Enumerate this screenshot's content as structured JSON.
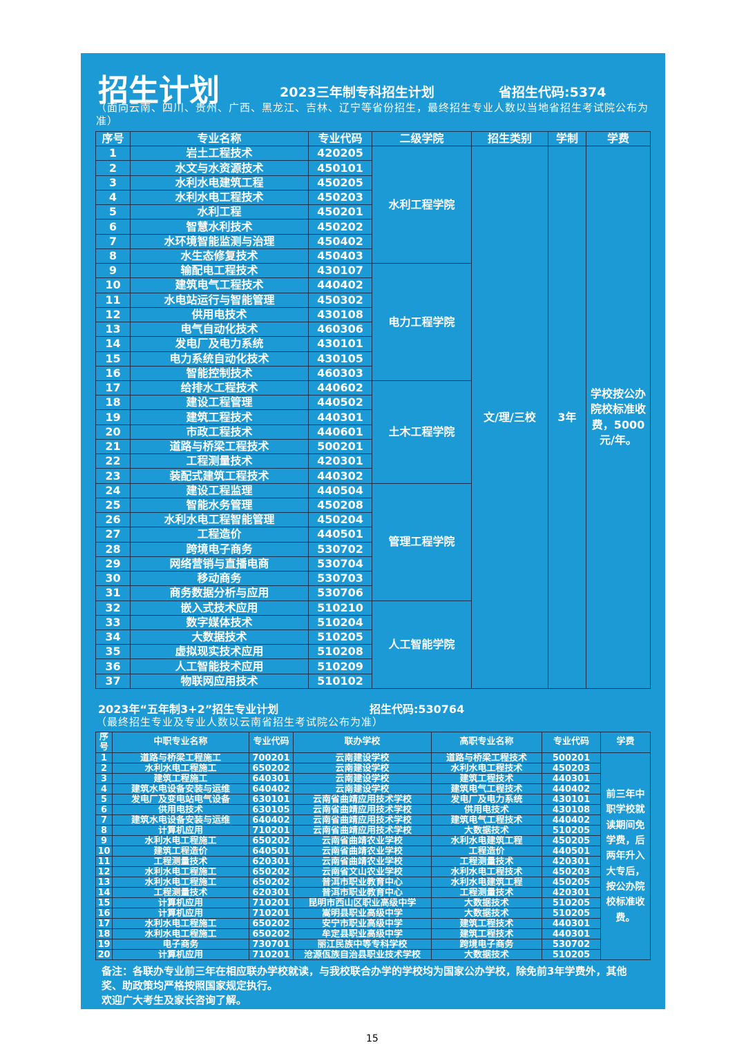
{
  "header": {
    "title": "招生计划",
    "subtitle": "2023三年制专科招生计划",
    "code": "省招生代码:5374",
    "note": "（面向云南、四川、贵州、广西、黑龙江、吉林、辽宁等省份招生，最终招生专业人数以当地省招生考试院公布为准）"
  },
  "table1": {
    "columns": [
      "序号",
      "专业名称",
      "专业代码",
      "二级学院",
      "招生类别",
      "学制",
      "学费"
    ],
    "category": "文/理/三校",
    "duration": "3年",
    "fee": "学校按公办院校标准收费，5000元/年。",
    "colleges": [
      {
        "name": "水利工程学院",
        "majors": [
          [
            "1",
            "岩土工程技术",
            "420205"
          ],
          [
            "2",
            "水文与水资源技术",
            "450101"
          ],
          [
            "3",
            "水利水电建筑工程",
            "450205"
          ],
          [
            "4",
            "水利水电工程技术",
            "450203"
          ],
          [
            "5",
            "水利工程",
            "450201"
          ],
          [
            "6",
            "智慧水利技术",
            "450202"
          ],
          [
            "7",
            "水环境智能监测与治理",
            "450402"
          ],
          [
            "8",
            "水生态修复技术",
            "450403"
          ]
        ]
      },
      {
        "name": "电力工程学院",
        "majors": [
          [
            "9",
            "输配电工程技术",
            "430107"
          ],
          [
            "10",
            "建筑电气工程技术",
            "440402"
          ],
          [
            "11",
            "水电站运行与智能管理",
            "450302"
          ],
          [
            "12",
            "供用电技术",
            "430108"
          ],
          [
            "13",
            "电气自动化技术",
            "460306"
          ],
          [
            "14",
            "发电厂及电力系统",
            "430101"
          ],
          [
            "15",
            "电力系统自动化技术",
            "430105"
          ],
          [
            "16",
            "智能控制技术",
            "460303"
          ]
        ]
      },
      {
        "name": "土木工程学院",
        "majors": [
          [
            "17",
            "给排水工程技术",
            "440602"
          ],
          [
            "18",
            "建设工程管理",
            "440502"
          ],
          [
            "19",
            "建筑工程技术",
            "440301"
          ],
          [
            "20",
            "市政工程技术",
            "440601"
          ],
          [
            "21",
            "道路与桥梁工程技术",
            "500201"
          ],
          [
            "22",
            "工程测量技术",
            "420301"
          ],
          [
            "23",
            "装配式建筑工程技术",
            "440302"
          ]
        ]
      },
      {
        "name": "管理工程学院",
        "majors": [
          [
            "24",
            "建设工程监理",
            "440504"
          ],
          [
            "25",
            "智能水务管理",
            "450208"
          ],
          [
            "26",
            "水利水电工程智能管理",
            "450204"
          ],
          [
            "27",
            "工程造价",
            "440501"
          ],
          [
            "28",
            "跨境电子商务",
            "530702"
          ],
          [
            "29",
            "网络营销与直播电商",
            "530704"
          ],
          [
            "30",
            "移动商务",
            "530703"
          ],
          [
            "31",
            "商务数据分析与应用",
            "530706"
          ]
        ]
      },
      {
        "name": "人工智能学院",
        "majors": [
          [
            "32",
            "嵌入式技术应用",
            "510210"
          ],
          [
            "33",
            "数字媒体技术",
            "510204"
          ],
          [
            "34",
            "大数据技术",
            "510205"
          ],
          [
            "35",
            "虚拟现实技术应用",
            "510208"
          ],
          [
            "36",
            "人工智能技术应用",
            "510209"
          ],
          [
            "37",
            "物联网应用技术",
            "510102"
          ]
        ]
      }
    ]
  },
  "section2": {
    "title": "2023年“五年制3+2”招生专业计划",
    "code": "招生代码:530764",
    "note": "（最终招生专业及专业人数以云南省招生考试院公布为准）"
  },
  "table2": {
    "columns": [
      "序号",
      "中职专业名称",
      "专业代码",
      "联办学校",
      "高职专业名称",
      "专业代码",
      "学费"
    ],
    "fee": "前三年中职学校就读期间免学费，后两年升入大专后，按公办院校标准收费。",
    "rows": [
      [
        "1",
        "道路与桥梁工程施工",
        "700201",
        "云南建设学校",
        "道路与桥梁工程技术",
        "500201"
      ],
      [
        "2",
        "水利水电工程施工",
        "650202",
        "云南建设学校",
        "水利水电工程技术",
        "450203"
      ],
      [
        "3",
        "建筑工程施工",
        "640301",
        "云南建设学校",
        "建筑工程技术",
        "440301"
      ],
      [
        "4",
        "建筑水电设备安装与运维",
        "640402",
        "云南建设学校",
        "建筑电气工程技术",
        "440402"
      ],
      [
        "5",
        "发电厂及变电站电气设备",
        "630101",
        "云南省曲靖应用技术学校",
        "发电厂及电力系统",
        "430101"
      ],
      [
        "6",
        "供用电技术",
        "630105",
        "云南省曲靖应用技术学校",
        "供用电技术",
        "430108"
      ],
      [
        "7",
        "建筑水电设备安装与运维",
        "640402",
        "云南省曲靖应用技术学校",
        "建筑电气工程技术",
        "440402"
      ],
      [
        "8",
        "计算机应用",
        "710201",
        "云南省曲靖应用技术学校",
        "大数据技术",
        "510205"
      ],
      [
        "9",
        "水利水电工程施工",
        "650202",
        "云南省曲靖农业学校",
        "水利水电建筑工程",
        "450205"
      ],
      [
        "10",
        "建筑工程造价",
        "640501",
        "云南省曲靖农业学校",
        "工程造价",
        "440501"
      ],
      [
        "11",
        "工程测量技术",
        "620301",
        "云南省曲靖农业学校",
        "工程测量技术",
        "420301"
      ],
      [
        "12",
        "水利水电工程施工",
        "650202",
        "云南省文山农业学校",
        "水利水电工程技术",
        "450203"
      ],
      [
        "13",
        "水利水电工程施工",
        "650202",
        "普洱市职业教育中心",
        "水利水电建筑工程",
        "450205"
      ],
      [
        "14",
        "工程测量技术",
        "620301",
        "普洱市职业教育中心",
        "工程测量技术",
        "420301"
      ],
      [
        "15",
        "计算机应用",
        "710201",
        "昆明市西山区职业高级中学",
        "大数据技术",
        "510205"
      ],
      [
        "16",
        "计算机应用",
        "710201",
        "嵩明县职业高级中学",
        "大数据技术",
        "510205"
      ],
      [
        "17",
        "水利水电工程施工",
        "650202",
        "安宁市职业高级中学",
        "建筑工程技术",
        "440301"
      ],
      [
        "18",
        "水利水电工程施工",
        "650202",
        "牟定县职业高级中学",
        "建筑工程技术",
        "440301"
      ],
      [
        "19",
        "电子商务",
        "730701",
        "丽江民族中等专科学校",
        "跨境电子商务",
        "530702"
      ],
      [
        "20",
        "计算机应用",
        "710201",
        "沧源佤族自治县职业技术学校",
        "大数据技术",
        "510205"
      ]
    ]
  },
  "footer": {
    "remark": "备注：各联办专业前三年在相应联办学校就读，与我校联合办学的学校均为国家公办学校，除免前3年学费外，其他奖、助政策均严格按照国家规定执行。",
    "welcome": "欢迎广大考生及家长咨询了解。",
    "page": "15"
  }
}
